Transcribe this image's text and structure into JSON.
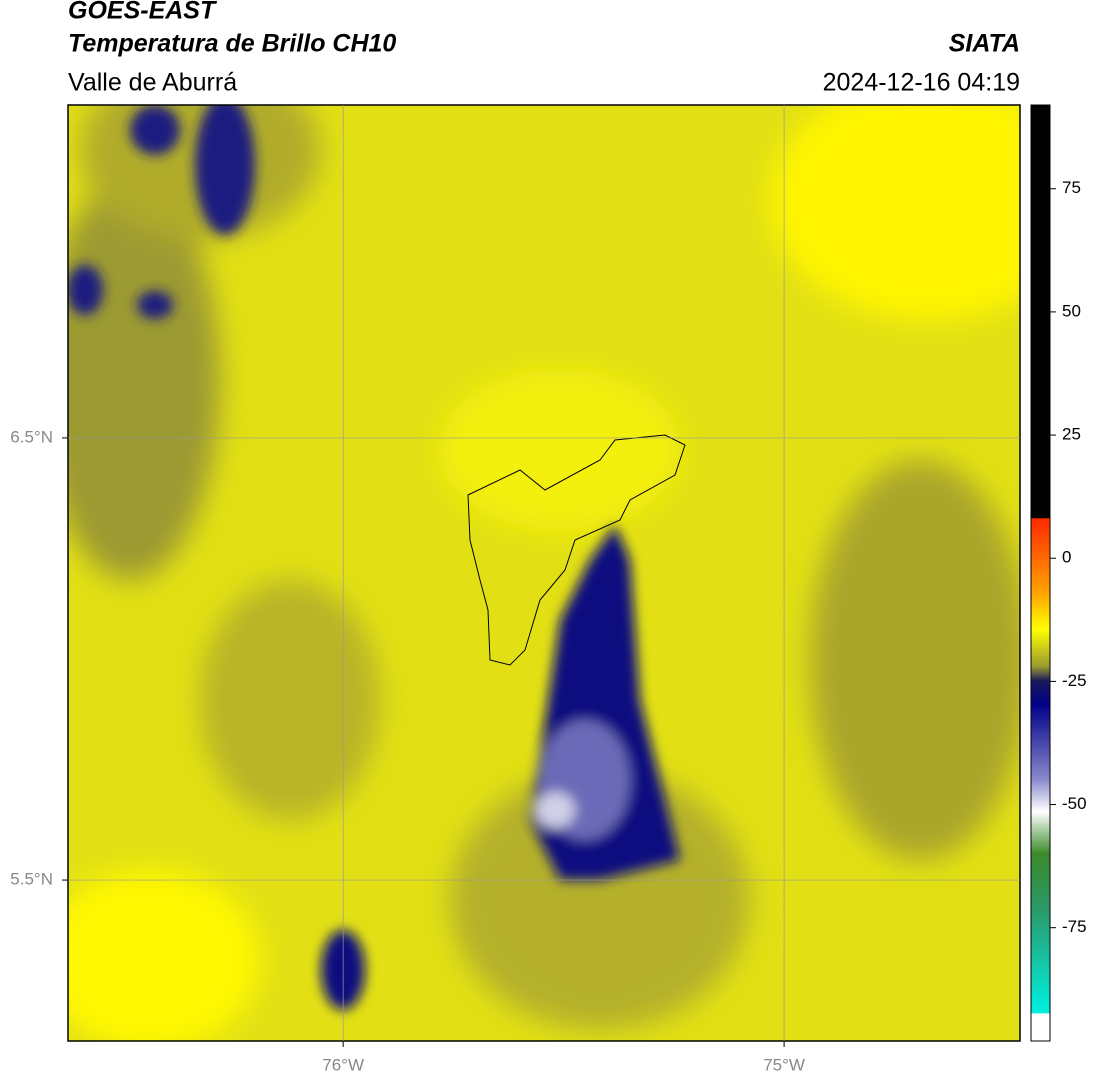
{
  "header": {
    "title": "GOES-EAST",
    "subtitle": "Temperatura de Brillo CH10",
    "region": "Valle de Aburrá",
    "source": "SIATA",
    "datetime": "2024-12-16 04:19"
  },
  "map": {
    "latlim": [
      5.136,
      7.253
    ],
    "lonlim": [
      -76.624,
      -74.465
    ],
    "lat_ticks": [
      {
        "value": 6.5,
        "label": "6.5°N"
      },
      {
        "value": 5.5,
        "label": "5.5°N"
      }
    ],
    "lon_ticks": [
      {
        "value": -76,
        "label": "76°W"
      },
      {
        "value": -75,
        "label": "75°W"
      }
    ]
  },
  "colorbar": {
    "lim": [
      -98,
      92
    ],
    "ticks": [
      75,
      50,
      25,
      0,
      -25,
      -50,
      -75
    ]
  }
}
